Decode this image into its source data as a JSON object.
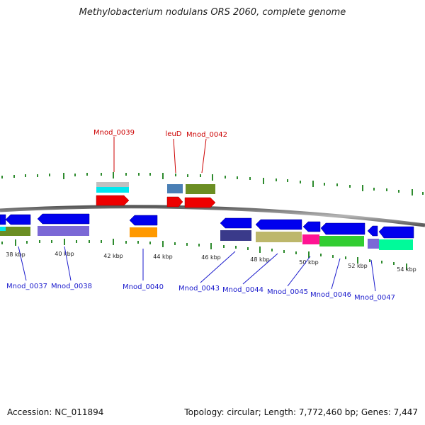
{
  "title": "Methylobacterium nodulans ORS 2060, complete genome",
  "footer": {
    "accession": "Accession: NC_011894",
    "stats": "Topology: circular; Length: 7,772,460 bp; Genes: 7,447"
  },
  "colors": {
    "backbone": "#7f7f7f",
    "tick": "#2e8b2e",
    "label_top": "#cc0000",
    "label_bottom": "#1a1acc",
    "gene_forward": "#ee0000",
    "gene_reverse": "#0000ee"
  },
  "map": {
    "kbp_labels": [
      "38 kbp",
      "40 kbp",
      "42 kbp",
      "44 kbp",
      "46 kbp",
      "48 kbp",
      "50 kbp",
      "52 kbp",
      "54 kbp"
    ],
    "top_labels": [
      "Mnod_0039",
      "leuD",
      "Mnod_0042"
    ],
    "bottom_labels": [
      "Mnod_0037",
      "Mnod_0038",
      "Mnod_0040",
      "Mnod_0043",
      "Mnod_0044",
      "Mnod_0045",
      "Mnod_0046",
      "Mnod_0047"
    ]
  }
}
